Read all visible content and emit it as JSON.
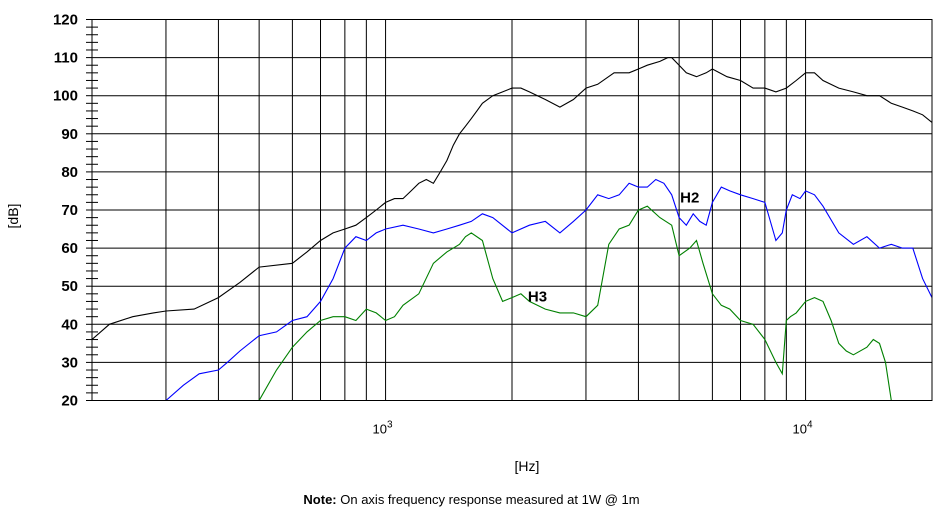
{
  "note": {
    "label": "Note:",
    "text": "On axis frequency response measured at 1W @ 1m"
  },
  "chart_data": {
    "type": "line",
    "xscale": "log",
    "xlim": [
      200,
      20000
    ],
    "ylim": [
      20,
      120
    ],
    "xlabel": "[Hz]",
    "ylabel": "[dB]",
    "grid": true,
    "y_ticks": [
      "20",
      "30",
      "40",
      "50",
      "60",
      "70",
      "80",
      "90",
      "100",
      "110",
      "120"
    ],
    "x_ticks": [
      {
        "base": "10",
        "exp": "3",
        "value": 1000
      },
      {
        "base": "10",
        "exp": "4",
        "value": 10000
      }
    ],
    "annotations": [
      {
        "text": "H2",
        "x": 5300,
        "y": 72
      },
      {
        "text": "H3",
        "x": 2300,
        "y": 46
      }
    ],
    "series": [
      {
        "name": "",
        "color": "#000000",
        "x": [
          200,
          220,
          250,
          280,
          300,
          350,
          400,
          450,
          500,
          600,
          650,
          700,
          750,
          800,
          850,
          900,
          950,
          1000,
          1050,
          1100,
          1150,
          1200,
          1250,
          1300,
          1350,
          1400,
          1450,
          1500,
          1550,
          1600,
          1650,
          1700,
          1800,
          1900,
          2000,
          2100,
          2200,
          2400,
          2600,
          2800,
          3000,
          3200,
          3500,
          3800,
          4000,
          4200,
          4500,
          4700,
          4800,
          5000,
          5200,
          5500,
          5800,
          6000,
          6500,
          7000,
          7500,
          8000,
          8500,
          9000,
          9500,
          10000,
          10500,
          11000,
          12000,
          13000,
          14000,
          15000,
          16000,
          17000,
          18000,
          19000,
          20000
        ],
        "y": [
          36,
          40,
          42,
          43,
          43.5,
          44,
          47,
          51,
          55,
          56,
          59,
          62,
          64,
          65,
          66,
          68,
          70,
          72,
          73,
          73,
          75,
          77,
          78,
          77,
          80,
          83,
          87,
          90,
          92,
          94,
          96,
          98,
          100,
          101,
          102,
          102,
          101,
          99,
          97,
          99,
          102,
          103,
          106,
          106,
          107,
          108,
          109,
          110,
          110,
          108,
          106,
          105,
          106,
          107,
          105,
          104,
          102,
          102,
          101,
          102,
          104,
          106,
          106,
          104,
          102,
          101,
          100,
          100,
          98,
          97,
          96,
          95,
          93
        ]
      },
      {
        "name": "H2",
        "color": "#0000ff",
        "x": [
          300,
          330,
          360,
          400,
          420,
          450,
          500,
          550,
          600,
          650,
          700,
          750,
          800,
          850,
          900,
          950,
          1000,
          1100,
          1200,
          1300,
          1400,
          1500,
          1600,
          1700,
          1800,
          2000,
          2200,
          2400,
          2600,
          2800,
          3000,
          3200,
          3400,
          3600,
          3800,
          4000,
          4200,
          4400,
          4600,
          4800,
          5000,
          5200,
          5400,
          5600,
          5800,
          6000,
          6300,
          6600,
          7000,
          7500,
          8000,
          8500,
          8800,
          9000,
          9300,
          9700,
          10000,
          10500,
          11000,
          12000,
          13000,
          14000,
          15000,
          16000,
          17000,
          18000,
          19000,
          20000
        ],
        "y": [
          20,
          24,
          27,
          28,
          30,
          33,
          37,
          38,
          41,
          42,
          46,
          52,
          60,
          63,
          62,
          64,
          65,
          66,
          65,
          64,
          65,
          66,
          67,
          69,
          68,
          64,
          66,
          67,
          64,
          67,
          70,
          74,
          73,
          74,
          77,
          76,
          76,
          78,
          77,
          74,
          68,
          66,
          69,
          67,
          66,
          72,
          76,
          75,
          74,
          73,
          72,
          62,
          64,
          70,
          74,
          73,
          75,
          74,
          71,
          64,
          61,
          63,
          60,
          61,
          60,
          60,
          52,
          47
        ]
      },
      {
        "name": "H3",
        "color": "#008000",
        "x": [
          500,
          550,
          600,
          650,
          700,
          750,
          800,
          850,
          900,
          950,
          1000,
          1050,
          1100,
          1200,
          1300,
          1400,
          1500,
          1550,
          1600,
          1700,
          1800,
          1900,
          2000,
          2100,
          2200,
          2400,
          2600,
          2800,
          3000,
          3200,
          3400,
          3600,
          3800,
          4000,
          4200,
          4500,
          4800,
          5000,
          5300,
          5500,
          5700,
          6000,
          6300,
          6600,
          7000,
          7500,
          8000,
          8500,
          8800,
          9000,
          9200,
          9500,
          10000,
          10500,
          11000,
          11500,
          12000,
          12500,
          13000,
          14000,
          14500,
          15000,
          15500,
          16000
        ],
        "y": [
          20,
          28,
          34,
          38,
          41,
          42,
          42,
          41,
          44,
          43,
          41,
          42,
          45,
          48,
          56,
          59,
          61,
          63,
          64,
          62,
          52,
          46,
          47,
          48,
          46,
          44,
          43,
          43,
          42,
          45,
          61,
          65,
          66,
          70,
          71,
          68,
          66,
          58,
          60,
          62,
          56,
          48,
          45,
          44,
          41,
          40,
          36,
          30,
          27,
          41,
          42,
          43,
          46,
          47,
          46,
          41,
          35,
          33,
          32,
          34,
          36,
          35,
          30,
          20
        ]
      }
    ]
  }
}
